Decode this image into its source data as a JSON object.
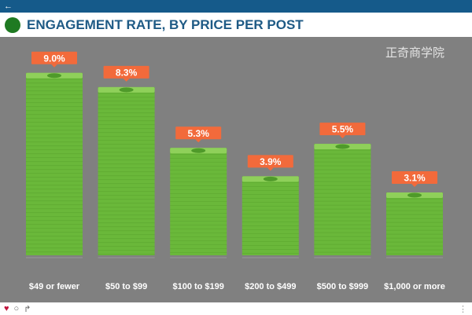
{
  "topbar": {
    "back_icon": "←"
  },
  "header": {
    "title": "ENGAGEMENT RATE, BY PRICE PER POST"
  },
  "chart_data": {
    "type": "bar",
    "title": "ENGAGEMENT RATE, BY PRICE PER POST",
    "categories": [
      "$49 or fewer",
      "$50 to $99",
      "$100 to $199",
      "$200 to $499",
      "$500 to $999",
      "$1,000 or more"
    ],
    "values": [
      9.0,
      8.3,
      5.3,
      3.9,
      5.5,
      3.1
    ],
    "data_labels": [
      "9.0%",
      "8.3%",
      "5.3%",
      "3.9%",
      "5.5%",
      "3.1%"
    ],
    "ylim": [
      0,
      10
    ],
    "colors": {
      "bar": "#6ab83a",
      "label_bg": "#f26a3b",
      "background": "#808080"
    }
  },
  "watermark": "正奇商学院",
  "footer": {
    "icons": [
      "heart-icon",
      "comment-icon",
      "share-icon"
    ]
  }
}
